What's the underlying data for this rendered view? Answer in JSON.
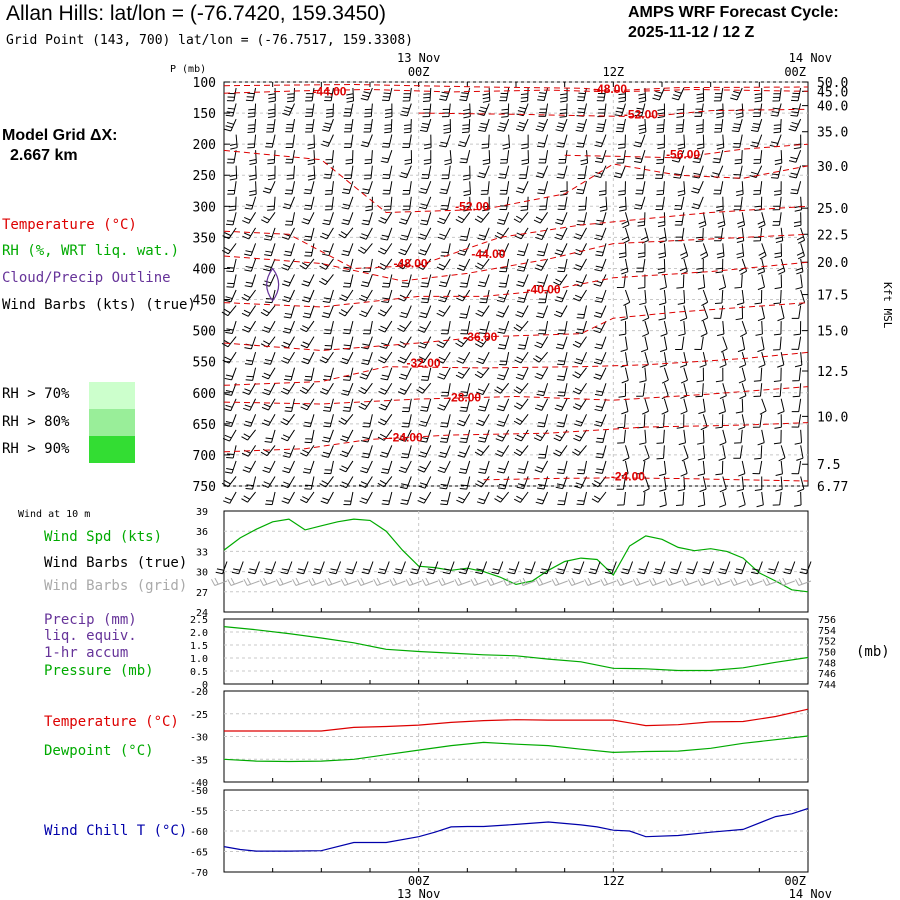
{
  "header": {
    "title": "Allan Hills:  lat/lon = (-76.7420, 159.3450)",
    "subtitle": "Grid Point (143, 700) lat/lon = (-76.7517, 159.3308)",
    "cycle_line1": "AMPS WRF Forecast Cycle:",
    "cycle_line2": "2025-11-12 / 12  Z"
  },
  "model_grid": {
    "label": "Model Grid ΔX:",
    "value": "2.667 km"
  },
  "legend": {
    "temperature": "Temperature (°C)",
    "rh": "RH (%, WRT liq. wat.)",
    "cloud": "Cloud/Precip Outline",
    "wind_barbs": "Wind Barbs (kts) (true)",
    "rh_levels": [
      {
        "label": "RH > 70%",
        "color": "#ccffcc"
      },
      {
        "label": "RH > 80%",
        "color": "#99ee99"
      },
      {
        "label": "RH > 90%",
        "color": "#33dd33"
      }
    ]
  },
  "colors": {
    "temperature": "#dd0000",
    "rh": "#00aa00",
    "cloud": "#663399",
    "wind_chill": "#0000aa",
    "gray": "#aaaaaa"
  },
  "chart_data": [
    {
      "id": "cross_section",
      "type": "contour",
      "ylabel_left": "P (mb)",
      "ylabel_right": "Kft MSL",
      "time_labels_top": [
        {
          "date": "13 Nov",
          "time": "00Z",
          "hour": 12
        },
        {
          "date": "",
          "time": "12Z",
          "hour": 24
        },
        {
          "date": "14 Nov",
          "time": "00Z",
          "hour": 36
        }
      ],
      "xlim": [
        0,
        36
      ],
      "ylim": [
        750,
        100
      ],
      "pressure_ticks": [
        100,
        150,
        200,
        250,
        300,
        350,
        400,
        450,
        500,
        550,
        600,
        650,
        700,
        750
      ],
      "height_ticks": [
        {
          "p": 100,
          "label": "50.0"
        },
        {
          "p": 115,
          "label": "45.0"
        },
        {
          "p": 138,
          "label": "40.0"
        },
        {
          "p": 180,
          "label": "35.0"
        },
        {
          "p": 235,
          "label": "30.0"
        },
        {
          "p": 303,
          "label": "25.0"
        },
        {
          "p": 345,
          "label": "22.5"
        },
        {
          "p": 390,
          "label": "20.0"
        },
        {
          "p": 442,
          "label": "17.5"
        },
        {
          "p": 500,
          "label": "15.0"
        },
        {
          "p": 565,
          "label": "12.5"
        },
        {
          "p": 638,
          "label": "10.0"
        },
        {
          "p": 715,
          "label": "7.5"
        },
        {
          "p": 750,
          "label": "6.77"
        }
      ],
      "temperature_contours": [
        {
          "label": "-44.00",
          "hour": 6.5,
          "p": 115,
          "pts": [
            [
              0,
              118
            ],
            [
              5,
              114
            ],
            [
              9,
              112
            ],
            [
              14,
              116
            ],
            [
              20,
              113
            ],
            [
              24,
              116
            ],
            [
              29,
              112
            ],
            [
              36,
              115
            ]
          ]
        },
        {
          "label": "-48.00",
          "hour": 23.8,
          "p": 111,
          "pts": [
            [
              0,
              106
            ],
            [
              8,
              104
            ],
            [
              16,
              108
            ],
            [
              22,
              110
            ],
            [
              24,
              114
            ],
            [
              28,
              109
            ],
            [
              36,
              108
            ]
          ]
        },
        {
          "label": "-52.00",
          "hour": 25.7,
          "p": 152,
          "pts": [
            [
              12,
              150
            ],
            [
              18,
              152
            ],
            [
              22,
              154
            ],
            [
              26,
              156
            ],
            [
              30,
              146
            ],
            [
              36,
              144
            ]
          ]
        },
        {
          "label": "-56.00",
          "hour": 28.3,
          "p": 217,
          "pts": [
            [
              21,
              218
            ],
            [
              25,
              220
            ],
            [
              28,
              222
            ],
            [
              32,
              208
            ],
            [
              36,
              200
            ]
          ]
        },
        {
          "label": "-52.00",
          "hour": 15.3,
          "p": 300,
          "pts": [
            [
              0,
              210
            ],
            [
              6,
              225
            ],
            [
              10,
              310
            ],
            [
              16,
              305
            ],
            [
              21,
              280
            ],
            [
              24,
              232
            ],
            [
              28,
              250
            ],
            [
              32,
              255
            ],
            [
              36,
              235
            ]
          ]
        },
        {
          "label": "-48.00",
          "hour": 11.5,
          "p": 392,
          "pts": [
            [
              0,
              340
            ],
            [
              4,
              345
            ],
            [
              8,
              400
            ],
            [
              12,
              395
            ],
            [
              17,
              350
            ],
            [
              22,
              330
            ],
            [
              26,
              320
            ],
            [
              30,
              310
            ],
            [
              36,
              300
            ]
          ]
        },
        {
          "label": "-44.00",
          "hour": 16.3,
          "p": 377,
          "pts": [
            [
              0,
              380
            ],
            [
              6,
              392
            ],
            [
              11,
              420
            ],
            [
              15,
              408
            ],
            [
              20,
              385
            ],
            [
              24,
              360
            ],
            [
              28,
              355
            ],
            [
              36,
              345
            ]
          ]
        },
        {
          "label": "-40.00",
          "hour": 19.7,
          "p": 434,
          "pts": [
            [
              0,
              455
            ],
            [
              6,
              462
            ],
            [
              12,
              445
            ],
            [
              16,
              445
            ],
            [
              20,
              435
            ],
            [
              24,
              415
            ],
            [
              30,
              405
            ],
            [
              36,
              390
            ]
          ]
        },
        {
          "label": "-36.00",
          "hour": 15.8,
          "p": 510,
          "pts": [
            [
              0,
              520
            ],
            [
              6,
              532
            ],
            [
              12,
              520
            ],
            [
              16,
              510
            ],
            [
              22,
              505
            ],
            [
              24,
              480
            ],
            [
              28,
              470
            ],
            [
              36,
              455
            ]
          ]
        },
        {
          "label": "-32.00",
          "hour": 12.3,
          "p": 552,
          "pts": [
            [
              0,
              588
            ],
            [
              6,
              582
            ],
            [
              10,
              558
            ],
            [
              16,
              560
            ],
            [
              22,
              558
            ],
            [
              26,
              555
            ],
            [
              32,
              545
            ],
            [
              36,
              535
            ]
          ]
        },
        {
          "label": "-28.00",
          "hour": 14.8,
          "p": 608,
          "pts": [
            [
              0,
              615
            ],
            [
              6,
              618
            ],
            [
              12,
              610
            ],
            [
              18,
              606
            ],
            [
              24,
              612
            ],
            [
              30,
              602
            ],
            [
              36,
              590
            ]
          ]
        },
        {
          "label": "-24.00",
          "hour": 11.2,
          "p": 672,
          "pts": [
            [
              0,
              695
            ],
            [
              5,
              690
            ],
            [
              9,
              675
            ],
            [
              14,
              668
            ],
            [
              20,
              665
            ],
            [
              26,
              655
            ],
            [
              32,
              652
            ],
            [
              36,
              648
            ]
          ]
        },
        {
          "label": "-24.00",
          "hour": 24.9,
          "p": 735,
          "pts": [
            [
              16,
              740
            ],
            [
              20,
              738
            ],
            [
              24,
              737
            ],
            [
              28,
              738
            ],
            [
              32,
              740
            ],
            [
              36,
              742
            ]
          ]
        }
      ],
      "cloud_outline": {
        "hour": 3.0,
        "p_min": 400,
        "p_max": 452
      }
    },
    {
      "id": "wind10m",
      "type": "line",
      "title": "Wind at 10 m",
      "series_labels": [
        "Wind Spd (kts)",
        "Wind Barbs (true)",
        "Wind Barbs (grid)"
      ],
      "ylim": [
        24,
        39
      ],
      "y_ticks": [
        24,
        27,
        30,
        33,
        36,
        39
      ],
      "x": [
        0,
        1,
        2,
        3,
        4,
        5,
        6,
        7,
        8,
        9,
        10,
        11,
        12,
        13,
        14,
        15,
        16,
        17,
        18,
        19,
        20,
        21,
        22,
        23,
        24,
        25,
        26,
        27,
        28,
        29,
        30,
        31,
        32,
        33,
        34,
        35,
        36
      ],
      "values": [
        33.2,
        35.0,
        36.3,
        37.4,
        37.8,
        36.2,
        36.8,
        37.4,
        37.8,
        37.6,
        36.0,
        33.2,
        30.8,
        30.6,
        30.2,
        30.5,
        30.0,
        29.2,
        28.1,
        28.6,
        30.2,
        31.5,
        32.0,
        31.8,
        29.5,
        33.8,
        35.3,
        34.8,
        33.6,
        33.1,
        33.4,
        33.0,
        32.0,
        29.8,
        28.6,
        27.3,
        27.0
      ]
    },
    {
      "id": "precip_pressure",
      "type": "line",
      "series_labels": [
        "Precip (mm)",
        "liq. equiv.",
        "1-hr accum",
        "Pressure (mb)"
      ],
      "unit_right": "(mb)",
      "ylim_left": [
        0,
        2.5
      ],
      "y_ticks_left": [
        "0",
        "0.5",
        "1.0",
        "1.5",
        "2.0",
        "2.5"
      ],
      "ylim_right": [
        744,
        756
      ],
      "y_ticks_right": [
        744,
        746,
        748,
        750,
        752,
        754,
        756
      ],
      "x": [
        0,
        2,
        4,
        6,
        8,
        10,
        12,
        14,
        16,
        18,
        20,
        22,
        24,
        26,
        28,
        30,
        32,
        34,
        36
      ],
      "pressure": [
        754.6,
        754.0,
        753.3,
        752.5,
        751.6,
        750.4,
        750.0,
        749.7,
        749.4,
        749.2,
        748.6,
        748.1,
        746.9,
        746.8,
        746.5,
        746.5,
        747.0,
        748.0,
        748.9
      ]
    },
    {
      "id": "temp_dewpoint",
      "type": "line",
      "series_labels": [
        "Temperature (°C)",
        "Dewpoint (°C)"
      ],
      "ylim": [
        -40,
        -20
      ],
      "y_ticks": [
        -40,
        -35,
        -30,
        -25,
        -20
      ],
      "x": [
        0,
        2,
        4,
        6,
        8,
        10,
        12,
        14,
        16,
        18,
        20,
        22,
        24,
        26,
        28,
        30,
        32,
        34,
        36
      ],
      "temperature": [
        -28.8,
        -28.8,
        -28.8,
        -28.8,
        -28.0,
        -27.8,
        -27.5,
        -26.9,
        -26.5,
        -26.3,
        -26.4,
        -26.4,
        -26.4,
        -27.6,
        -27.4,
        -26.8,
        -26.7,
        -25.6,
        -24.0
      ],
      "dewpoint": [
        -35.0,
        -35.4,
        -35.5,
        -35.4,
        -35.0,
        -34.0,
        -33.0,
        -32.0,
        -31.3,
        -31.7,
        -32.0,
        -32.8,
        -33.5,
        -33.3,
        -33.2,
        -32.6,
        -31.5,
        -30.7,
        -29.9
      ]
    },
    {
      "id": "wind_chill",
      "type": "line",
      "series_labels": [
        "Wind Chill T (°C)"
      ],
      "ylim": [
        -70,
        -50
      ],
      "y_ticks": [
        -70,
        -65,
        -60,
        -55,
        -50
      ],
      "time_labels_bottom": [
        {
          "date": "13 Nov",
          "time": "00Z",
          "hour": 12
        },
        {
          "date": "",
          "time": "12Z",
          "hour": 24
        },
        {
          "date": "14 Nov",
          "time": "00Z",
          "hour": 36
        }
      ],
      "x": [
        0,
        1,
        2,
        4,
        6,
        8,
        10,
        12,
        13,
        14,
        15,
        16,
        18,
        20,
        22,
        23,
        24,
        25,
        26,
        28,
        30,
        32,
        34,
        35,
        36
      ],
      "values": [
        -63.8,
        -64.5,
        -64.9,
        -64.9,
        -64.8,
        -62.8,
        -62.8,
        -61.4,
        -60.3,
        -59.0,
        -58.9,
        -58.9,
        -58.4,
        -57.8,
        -58.5,
        -59.0,
        -59.8,
        -60.0,
        -61.4,
        -61.1,
        -60.3,
        -59.6,
        -56.5,
        -55.8,
        -54.5
      ]
    }
  ]
}
